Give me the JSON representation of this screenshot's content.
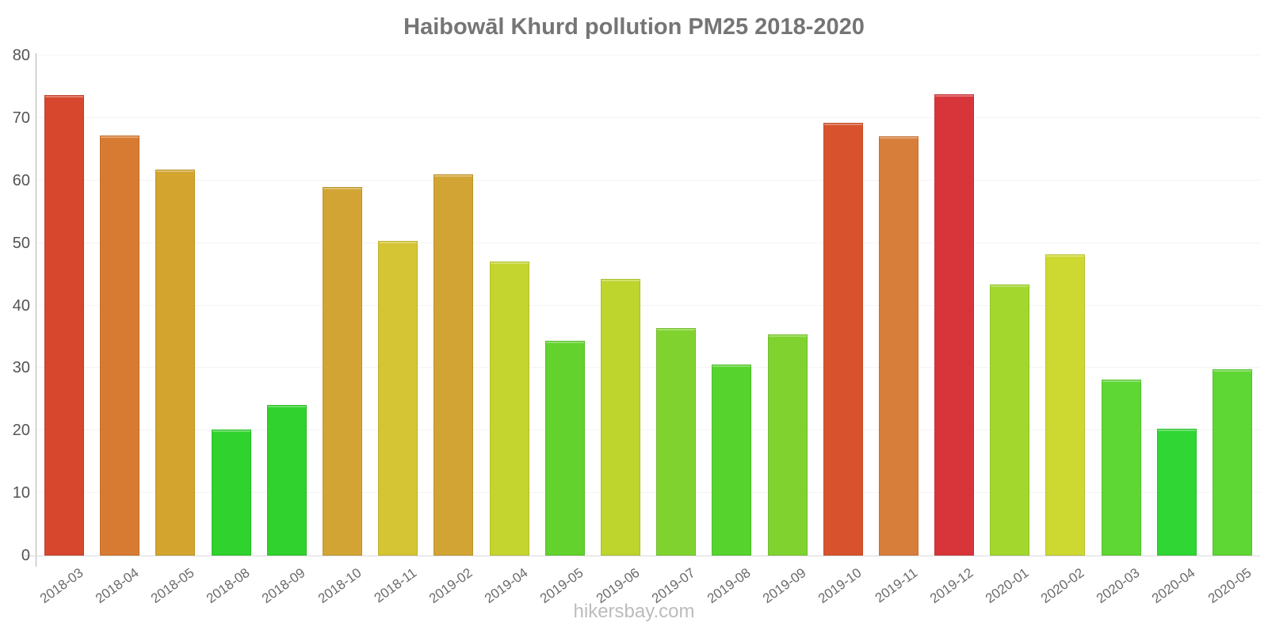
{
  "page": {
    "title": "Haibowāl Khurd pollution PM25 2018-2020",
    "footer": "hikersbay.com"
  },
  "chart_data": {
    "type": "bar",
    "title": "Haibowāl Khurd pollution PM25 2018-2020",
    "categories": [
      "2018-03",
      "2018-04",
      "2018-05",
      "2018-08",
      "2018-09",
      "2018-10",
      "2018-11",
      "2019-02",
      "2019-04",
      "2019-05",
      "2019-06",
      "2019-07",
      "2019-08",
      "2019-09",
      "2019-10",
      "2019-11",
      "2019-12",
      "2020-01",
      "2020-02",
      "2020-03",
      "2020-04",
      "2020-05"
    ],
    "values": [
      73.7,
      67.2,
      61.8,
      20.2,
      24.1,
      58.9,
      50.3,
      61.0,
      47.0,
      34.4,
      44.3,
      36.4,
      30.6,
      35.4,
      69.2,
      67.1,
      73.8,
      43.4,
      48.2,
      28.2,
      20.3,
      29.8
    ],
    "bar_colors": [
      "#d7472d",
      "#d87b32",
      "#d3a52f",
      "#30d22d",
      "#30d22d",
      "#d2a433",
      "#d5c433",
      "#d2a433",
      "#c5d52f",
      "#63d22d",
      "#bdd52c",
      "#80d32f",
      "#57d32d",
      "#80d32f",
      "#d8532d",
      "#d87e3b",
      "#d8353b",
      "#a3d72e",
      "#cdd931",
      "#5ed634",
      "#2fd634",
      "#5ed634"
    ],
    "xlabel": "",
    "ylabel": "",
    "ylim": [
      0,
      80
    ],
    "yticks": [
      0,
      10,
      20,
      30,
      40,
      50,
      60,
      70,
      80
    ],
    "grid": "horizontal-faint",
    "legend": "none",
    "footer": "hikersbay.com"
  },
  "colors": {
    "title_text": "#757575",
    "axis_text": "#545454",
    "x_label_text": "#6b6b6b",
    "footer_text": "#bcbcbc",
    "axis_line": "#b3b3b3",
    "gridline": "#f4f4f4",
    "background": "#ffffff"
  }
}
